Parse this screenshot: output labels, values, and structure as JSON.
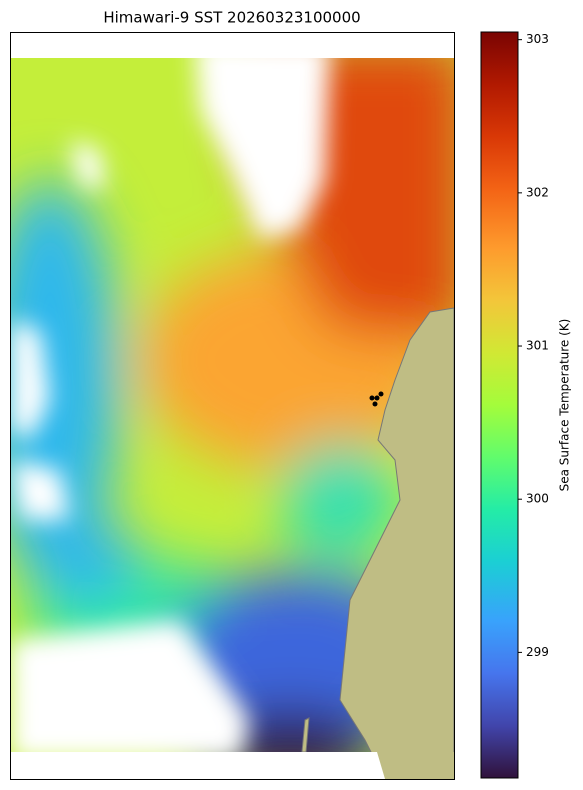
{
  "chart_data": {
    "type": "heatmap",
    "title": "Himawari-9 SST 20260323100000",
    "colorbar_label": "Sea Surface Temperature (K)",
    "clim": [
      298.18,
      303.05
    ],
    "cticks": [
      299,
      300,
      301,
      302,
      303
    ]
  }
}
